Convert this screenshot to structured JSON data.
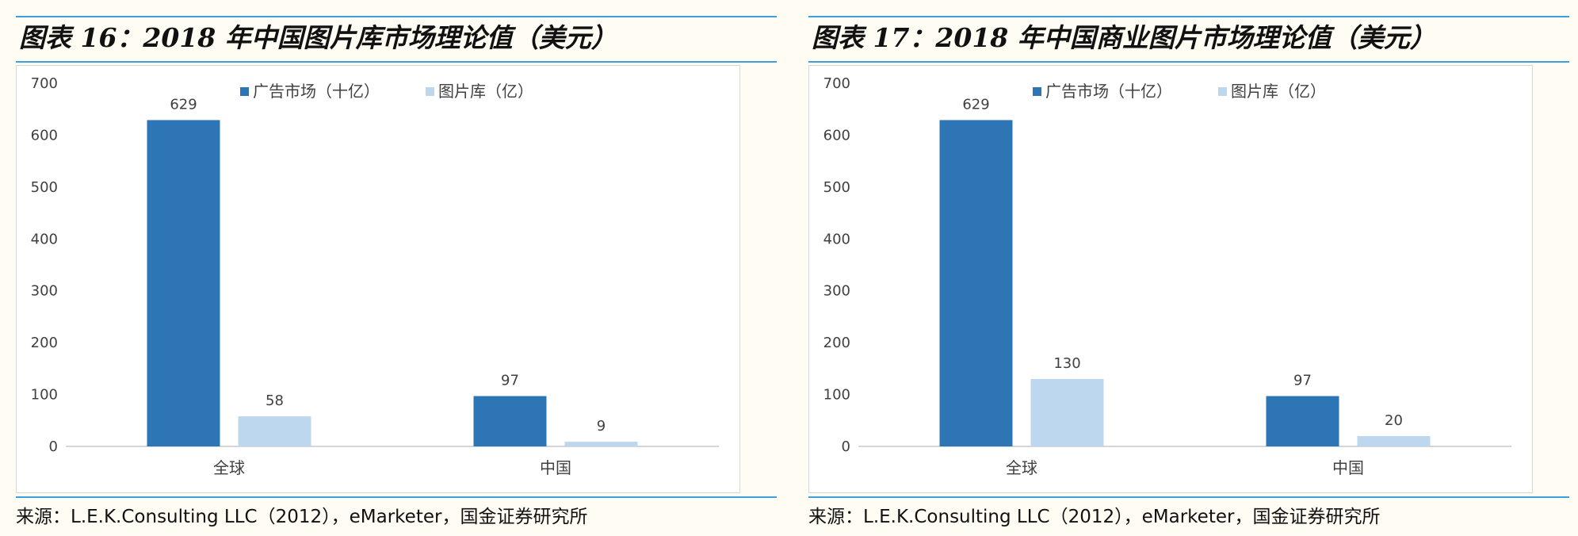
{
  "charts": [
    {
      "title": "图表 16：2018 年中国图片库市场理论值（美元）",
      "source": "来源：L.E.K.Consulting LLC（2012），eMarketer，国金证券研究所"
    },
    {
      "title": "图表 17：2018 年中国商业图片市场理论值（美元）",
      "source": "来源：L.E.K.Consulting LLC（2012），eMarketer，国金证券研究所"
    }
  ],
  "chart_data": [
    {
      "type": "bar",
      "title": "图表 16：2018 年中国图片库市场理论值（美元）",
      "categories": [
        "全球",
        "中国"
      ],
      "series": [
        {
          "name": "广告市场（十亿）",
          "values": [
            629,
            97
          ],
          "color": "#2e75b6"
        },
        {
          "name": "图片库（亿）",
          "values": [
            58,
            9
          ],
          "color": "#bdd7ee"
        }
      ],
      "ylim": [
        0,
        700
      ],
      "yticks": [
        0,
        100,
        200,
        300,
        400,
        500,
        600,
        700
      ],
      "legend": "top",
      "grid": false
    },
    {
      "type": "bar",
      "title": "图表 17：2018 年中国商业图片市场理论值（美元）",
      "categories": [
        "全球",
        "中国"
      ],
      "series": [
        {
          "name": "广告市场（十亿）",
          "values": [
            629,
            97
          ],
          "color": "#2e75b6"
        },
        {
          "name": "图片库（亿）",
          "values": [
            130,
            20
          ],
          "color": "#bdd7ee"
        }
      ],
      "ylim": [
        0,
        700
      ],
      "yticks": [
        0,
        100,
        200,
        300,
        400,
        500,
        600,
        700
      ],
      "legend": "top",
      "grid": false
    }
  ]
}
